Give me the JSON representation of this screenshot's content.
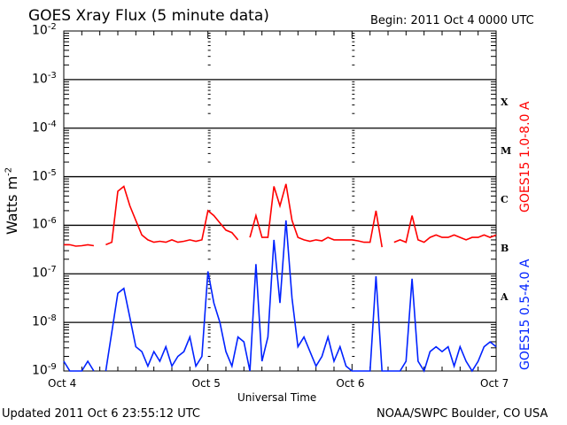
{
  "chart_data": {
    "type": "line",
    "title": "GOES Xray Flux (5 minute data)",
    "begin": "Begin:  2011 Oct 4 0000 UTC",
    "xlabel": "Universal Time",
    "ylabel": "Watts m",
    "ylabel_exp": "-2",
    "y_scale": "log10",
    "ylim_log10": [
      -9,
      -2
    ],
    "xlim_hours": [
      0,
      72
    ],
    "x_ticks": [
      {
        "hour": 0,
        "label": "Oct 4"
      },
      {
        "hour": 24,
        "label": "Oct 5"
      },
      {
        "hour": 48,
        "label": "Oct 6"
      },
      {
        "hour": 72,
        "label": "Oct 7"
      }
    ],
    "y_ticks": [
      {
        "base": "10",
        "exp": "-2",
        "log": -2
      },
      {
        "base": "10",
        "exp": "-3",
        "log": -3
      },
      {
        "base": "10",
        "exp": "-4",
        "log": -4
      },
      {
        "base": "10",
        "exp": "-5",
        "log": -5
      },
      {
        "base": "10",
        "exp": "-6",
        "log": -6
      },
      {
        "base": "10",
        "exp": "-7",
        "log": -7
      },
      {
        "base": "10",
        "exp": "-8",
        "log": -8
      },
      {
        "base": "10",
        "exp": "-9",
        "log": -9
      }
    ],
    "flare_classes": [
      {
        "label": "X",
        "log": -3.5
      },
      {
        "label": "M",
        "log": -4.5
      },
      {
        "label": "C",
        "log": -5.5
      },
      {
        "label": "B",
        "log": -6.5
      },
      {
        "label": "A",
        "log": -7.5
      }
    ],
    "grid": "horizontal at each decade",
    "series": [
      {
        "name": "GOES15 1.0-8.0 A",
        "color": "#ff0000",
        "hours_step": 1,
        "log10_values": [
          -6.4,
          -6.4,
          -6.43,
          -6.42,
          -6.4,
          -6.42,
          null,
          -6.4,
          -6.35,
          -5.3,
          -5.2,
          -5.6,
          -5.9,
          -6.2,
          -6.3,
          -6.35,
          -6.33,
          -6.35,
          -6.3,
          -6.35,
          -6.33,
          -6.3,
          -6.33,
          -6.3,
          -5.7,
          -5.8,
          -5.95,
          -6.1,
          -6.15,
          -6.3,
          null,
          -6.25,
          -5.8,
          -6.25,
          -6.25,
          -5.2,
          -5.6,
          -5.15,
          -5.9,
          -6.25,
          -6.3,
          -6.33,
          -6.3,
          -6.32,
          -6.25,
          -6.3,
          -6.3,
          -6.3,
          -6.3,
          -6.32,
          -6.35,
          -6.35,
          -5.7,
          -6.45,
          null,
          -6.35,
          -6.3,
          -6.35,
          -5.8,
          -6.3,
          -6.35,
          -6.25,
          -6.2,
          -6.25,
          -6.25,
          -6.2,
          -6.25,
          -6.3,
          -6.25,
          -6.25,
          -6.2,
          -6.25,
          -6.2
        ]
      },
      {
        "name": "GOES15 0.5-4.0 A",
        "color": "#0022ff",
        "hours_step": 1,
        "log10_values": [
          -8.8,
          -9,
          -9,
          -9,
          -8.8,
          -9,
          null,
          -9,
          -8.2,
          -7.4,
          -7.3,
          -7.9,
          -8.5,
          -8.6,
          -8.9,
          -8.6,
          -8.8,
          -8.5,
          -8.9,
          -8.7,
          -8.6,
          -8.3,
          -8.9,
          -8.7,
          -6.95,
          -7.6,
          -8.0,
          -8.6,
          -8.9,
          -8.3,
          -8.4,
          -9,
          -6.8,
          -8.8,
          -8.3,
          -6.3,
          -7.6,
          -5.9,
          -7.5,
          -8.5,
          -8.3,
          -8.6,
          -8.9,
          -8.7,
          -8.3,
          -8.8,
          -8.5,
          -8.9,
          -9,
          -9,
          -9,
          -9,
          -7.05,
          -9,
          -9,
          -9,
          -9,
          -8.8,
          -7.1,
          -8.8,
          -9,
          -8.6,
          -8.5,
          -8.6,
          -8.5,
          -8.9,
          -8.5,
          -8.8,
          -9,
          -8.8,
          -8.5,
          -8.4,
          -8.5
        ]
      }
    ]
  },
  "footer": {
    "updated": "Updated 2011 Oct  6 23:55:12 UTC",
    "source": "NOAA/SWPC Boulder, CO USA"
  }
}
